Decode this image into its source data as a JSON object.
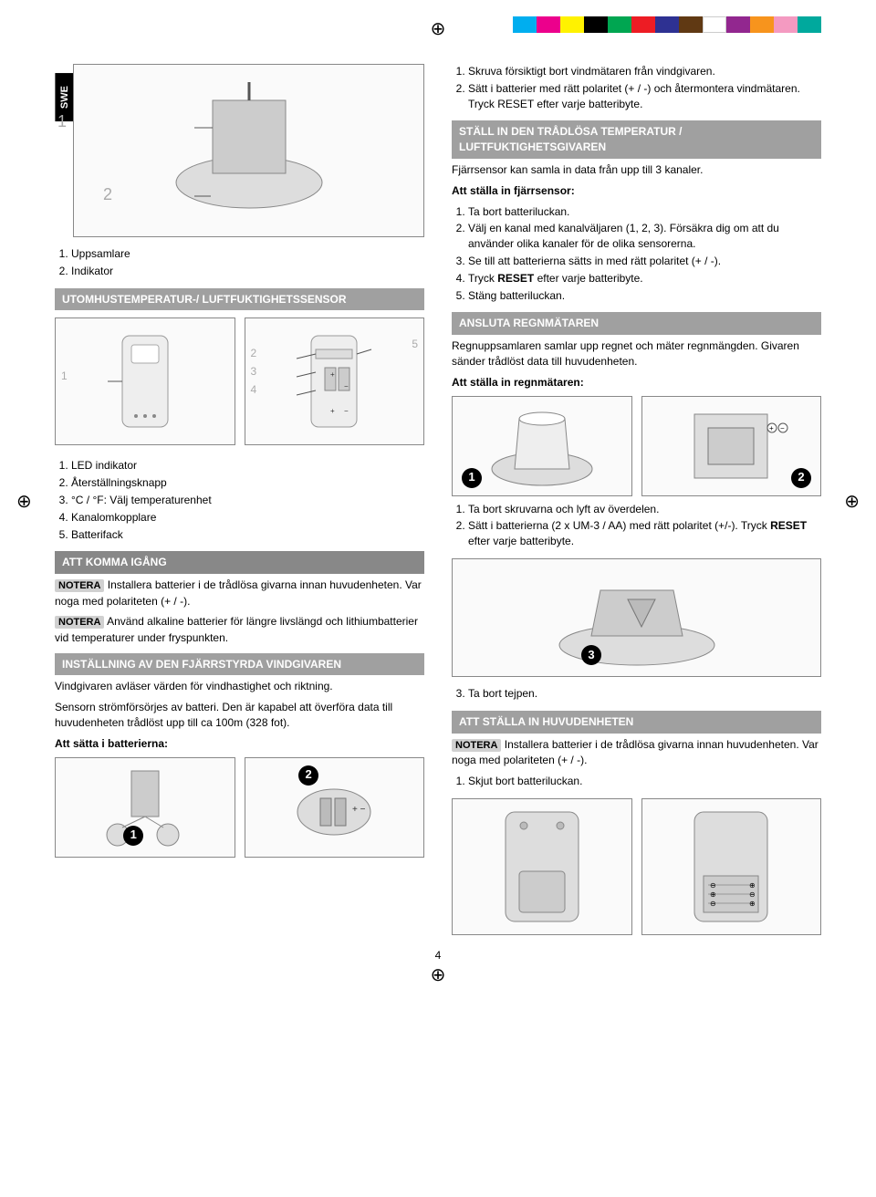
{
  "tab_label": "SWE",
  "color_bar": [
    "#00aeef",
    "#ec008c",
    "#fff200",
    "#000000",
    "#00a651",
    "#ed1c24",
    "#2e3192",
    "#603913",
    "#ffffff",
    "#92278f",
    "#f7941d",
    "#f49ac1",
    "#00a99d"
  ],
  "left": {
    "top_diagram_labels": [
      "1",
      "2"
    ],
    "list1": [
      "Uppsamlare",
      "Indikator"
    ],
    "header_outdoor": "UTOMHUSTEMPERATUR-/ LUFTFUKTIGHETSSENSOR",
    "sensor_labels": [
      "1",
      "2",
      "3",
      "4",
      "5"
    ],
    "list_led": [
      "LED indikator",
      "Återställningsknapp",
      "°C / °F: Välj temperaturenhet",
      "Kanalomkopplare",
      "Batterifack"
    ],
    "header_start": "ATT KOMMA IGÅNG",
    "notera1": "NOTERA",
    "notera1_text": " Installera batterier i de trådlösa givarna innan huvudenheten. Var noga med polariteten (+ / -).",
    "notera2": "NOTERA",
    "notera2_text": " Använd alkaline batterier för längre livslängd och lithiumbatterier vid temperaturer under fryspunkten.",
    "header_wind": "INSTÄLLNING AV DEN FJÄRRSTYRDA VINDGIVAREN",
    "wind_p1": "Vindgivaren avläser värden för vindhastighet och riktning.",
    "wind_p2": "Sensorn strömförsörjes av batteri. Den är kapabel att överföra data till huvudenheten trådlöst upp till ca 100m (328 fot).",
    "wind_bold": "Att sätta i batterierna:",
    "wind_circles": [
      "1",
      "2"
    ]
  },
  "right": {
    "top_list": [
      "Skruva försiktigt bort vindmätaren från vindgivaren.",
      "Sätt i batterier med rätt polaritet (+ / -) och återmontera vindmätaren. Tryck RESET efter varje batteribyte."
    ],
    "header_temp": "STÄLL IN DEN TRÅDLÖSA TEMPERATUR / LUFTFUKTIGHETSGIVAREN",
    "temp_p1": "Fjärrsensor kan samla in data från upp till 3 kanaler.",
    "temp_bold1": "Att ställa in fjärrsensor:",
    "temp_list": [
      "Ta bort batteriluckan.",
      "Välj en kanal med kanalväljaren (1, 2, 3). Försäkra dig om att du använder olika kanaler för de olika sensorerna.",
      "Se till att batterierna sätts in med rätt polaritet (+ / -).",
      "Tryck RESET efter varje batteribyte.",
      "Stäng batteriluckan."
    ],
    "header_rain": "ANSLUTA REGNMÄTAREN",
    "rain_p1": "Regnuppsamlaren samlar upp regnet och mäter regnmängden. Givaren sänder trådlöst data till huvudenheten.",
    "rain_bold1": "Att ställa in regnmätaren:",
    "rain_circles1": [
      "1",
      "2"
    ],
    "rain_list1": [
      "Ta bort skruvarna och lyft av överdelen.",
      "Sätt i batterierna (2 x UM-3 / AA) med rätt polaritet (+/-). Tryck RESET efter varje batteribyte."
    ],
    "rain_circle3": "3",
    "rain_list2_start": 3,
    "rain_list2": [
      "Ta bort tejpen."
    ],
    "header_main": "ATT STÄLLA IN HUVUDENHETEN",
    "main_notera": "NOTERA",
    "main_notera_text": " Installera batterier i de trådlösa givarna innan huvudenheten. Var noga med polariteten (+ / -).",
    "main_list": [
      "Skjut bort batteriluckan."
    ]
  },
  "page_number": "4"
}
